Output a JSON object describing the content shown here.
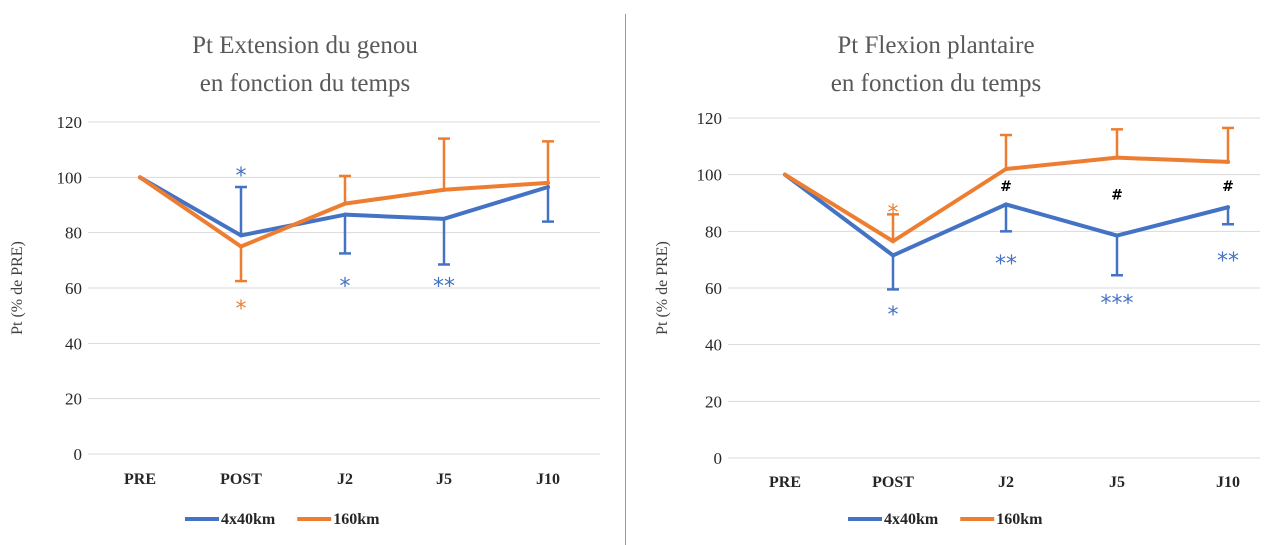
{
  "chart_data": [
    {
      "type": "line",
      "title": [
        "Pt Extension du genou",
        "en fonction du temps"
      ],
      "xlabel": "",
      "ylabel": "Pt (% de PRE)",
      "categories": [
        "PRE",
        "POST",
        "J2",
        "J5",
        "J10"
      ],
      "yticks": [
        "0",
        "20",
        "40",
        "60",
        "80",
        "100",
        "120"
      ],
      "ylim": [
        0,
        120
      ],
      "grid": true,
      "legend_position": "bottom",
      "series": [
        {
          "name": "4x40km",
          "color": "#4472C4",
          "values": [
            100,
            79,
            86.5,
            85,
            96.5
          ],
          "errors": [
            0,
            17.5,
            14,
            16.5,
            12.5
          ],
          "error_direction": [
            "none",
            "up",
            "down",
            "down",
            "down"
          ]
        },
        {
          "name": "160km",
          "color": "#ED7D31",
          "values": [
            100,
            75,
            90.5,
            95.5,
            98
          ],
          "errors": [
            0,
            12.5,
            10,
            18.5,
            15
          ],
          "error_direction": [
            "none",
            "down",
            "up",
            "up",
            "up"
          ]
        }
      ],
      "annotations": [
        {
          "text": "*",
          "category": "POST",
          "y": 103,
          "color": "#4472C4"
        },
        {
          "text": "*",
          "category": "POST",
          "y": 55,
          "color": "#ED7D31"
        },
        {
          "text": "*",
          "category": "J2",
          "y": 63,
          "color": "#4472C4"
        },
        {
          "text": "**",
          "category": "J5",
          "y": 63,
          "color": "#4472C4"
        }
      ]
    },
    {
      "type": "line",
      "title": [
        "Pt Flexion plantaire",
        "en fonction du temps"
      ],
      "xlabel": "",
      "ylabel": "Pt (% de PRE)",
      "categories": [
        "PRE",
        "POST",
        "J2",
        "J5",
        "J10"
      ],
      "yticks": [
        "0",
        "20",
        "40",
        "60",
        "80",
        "100",
        "120"
      ],
      "ylim": [
        0,
        120
      ],
      "grid": true,
      "legend_position": "bottom",
      "series": [
        {
          "name": "4x40km",
          "color": "#4472C4",
          "values": [
            100,
            71.5,
            89.5,
            78.5,
            88.5
          ],
          "errors": [
            0,
            12,
            9.5,
            14,
            6
          ],
          "error_direction": [
            "none",
            "down",
            "down",
            "down",
            "down"
          ]
        },
        {
          "name": "160km",
          "color": "#ED7D31",
          "values": [
            100,
            76.5,
            102,
            106,
            104.5
          ],
          "errors": [
            0,
            9.5,
            12,
            10,
            12
          ],
          "error_direction": [
            "none",
            "up",
            "up",
            "up",
            "up"
          ]
        }
      ],
      "annotations": [
        {
          "text": "*",
          "category": "POST",
          "y": 89,
          "color": "#ED7D31"
        },
        {
          "text": "*",
          "category": "POST",
          "y": 53,
          "color": "#4472C4"
        },
        {
          "text": "#",
          "category": "J2",
          "y": 96,
          "color": "#000000"
        },
        {
          "text": "#",
          "category": "J5",
          "y": 93,
          "color": "#000000"
        },
        {
          "text": "#",
          "category": "J10",
          "y": 96,
          "color": "#000000"
        },
        {
          "text": "**",
          "category": "J2",
          "y": 71,
          "color": "#4472C4"
        },
        {
          "text": "***",
          "category": "J5",
          "y": 57,
          "color": "#4472C4"
        },
        {
          "text": "**",
          "category": "J10",
          "y": 72,
          "color": "#4472C4"
        }
      ]
    }
  ]
}
